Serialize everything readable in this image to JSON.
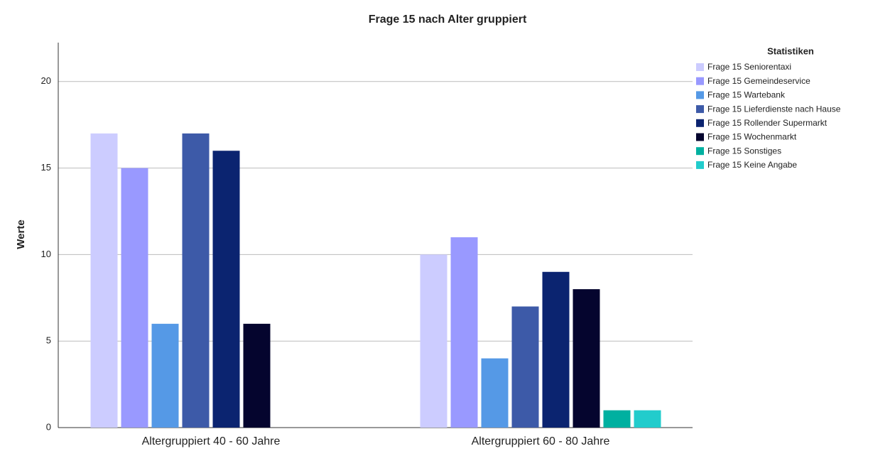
{
  "chart_data": {
    "type": "bar",
    "title": "Frage 15 nach Alter gruppiert",
    "y_label": "Werte",
    "legend_title": "Statistiken",
    "categories": [
      "Altergruppiert 40 - 60 Jahre",
      "Altergruppiert 60 - 80 Jahre"
    ],
    "series": [
      {
        "name": "Frage 15 Seniorentaxi",
        "color": "#ccccff",
        "values": [
          17,
          10
        ]
      },
      {
        "name": "Frage 15 Gemeindeservice",
        "color": "#9999ff",
        "values": [
          15,
          11
        ]
      },
      {
        "name": "Frage 15 Wartebank",
        "color": "#5599e6",
        "values": [
          6,
          4
        ]
      },
      {
        "name": "Frage 15 Lieferdienste nach Hause",
        "color": "#3d5aa8",
        "values": [
          17,
          7
        ]
      },
      {
        "name": "Frage 15 Rollender Supermarkt",
        "color": "#0b2470",
        "values": [
          16,
          9
        ]
      },
      {
        "name": "Frage 15 Wochenmarkt",
        "color": "#05052e",
        "values": [
          6,
          8
        ]
      },
      {
        "name": "Frage 15 Sonstiges",
        "color": "#00b0a0",
        "values": [
          0,
          1
        ]
      },
      {
        "name": "Frage 15 Keine Angabe",
        "color": "#22cccc",
        "values": [
          0,
          1
        ]
      }
    ],
    "ylim": [
      0,
      22.25
    ],
    "yticks": [
      0,
      5,
      10,
      15,
      20
    ],
    "grid": true,
    "legend": "top-right"
  }
}
